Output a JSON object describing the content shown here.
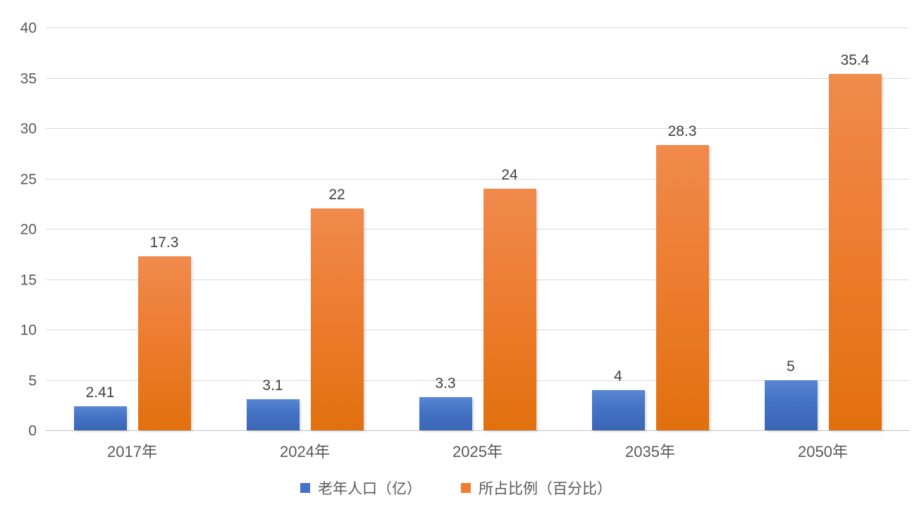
{
  "chart_data": {
    "type": "bar",
    "title": "",
    "categories": [
      "2017年",
      "2024年",
      "2025年",
      "2035年",
      "2050年"
    ],
    "series": [
      {
        "name": "老年人口（亿）",
        "color": "#4472c4",
        "values": [
          2.41,
          3.1,
          3.3,
          4,
          5
        ]
      },
      {
        "name": "所占比例（百分比）",
        "color": "#ed7d31",
        "values": [
          17.3,
          22,
          24,
          28.3,
          35.4
        ]
      }
    ],
    "y_axis": {
      "min": 0,
      "max": 40,
      "step": 5,
      "ticks": [
        0,
        5,
        10,
        15,
        20,
        25,
        30,
        35,
        40
      ]
    },
    "xlabel": "",
    "ylabel": "",
    "grid": true,
    "legend_position": "bottom",
    "data_labels_shown": true,
    "colors": {
      "gridline": "#d9d9d9",
      "axis_text": "#595959",
      "data_label_text": "#404040",
      "background": "#ffffff"
    }
  }
}
